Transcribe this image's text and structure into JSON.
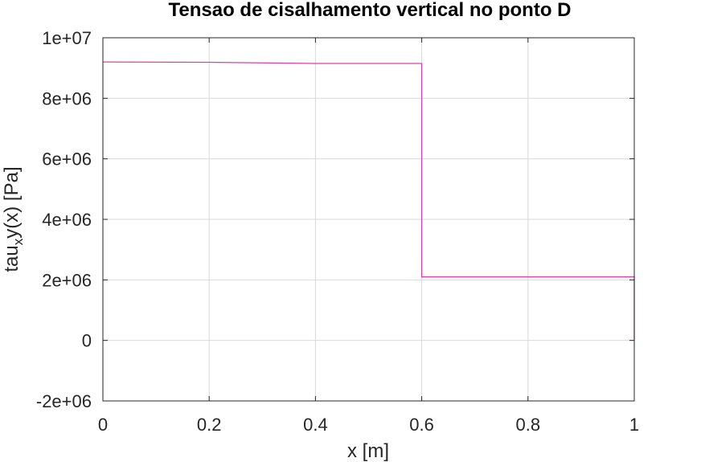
{
  "chart_data": {
    "type": "line",
    "title": "Tensao de cisalhamento vertical no ponto D",
    "xlabel": "x [m]",
    "ylabel": {
      "prefix": "tau",
      "subscript": "x",
      "suffix": "y(x) [Pa]"
    },
    "xlim": [
      0,
      1
    ],
    "ylim": [
      -2000000,
      10000000
    ],
    "xticks": [
      0,
      0.2,
      0.4,
      0.6,
      0.8,
      1
    ],
    "xtick_labels": [
      "0",
      "0.2",
      "0.4",
      "0.6",
      "0.8",
      "1"
    ],
    "yticks": [
      -2000000,
      0,
      2000000,
      4000000,
      6000000,
      8000000,
      10000000
    ],
    "ytick_labels": [
      "-2e+06",
      "0",
      "2e+06",
      "4e+06",
      "6e+06",
      "8e+06",
      "1e+07"
    ],
    "grid": true,
    "series": [
      {
        "color": "#e040a0",
        "x": [
          0,
          0.2,
          0.4,
          0.6,
          0.6,
          0.8,
          1.0,
          1.0
        ],
        "y": [
          9200000,
          9190000,
          9150000,
          9150000,
          2100000,
          2100000,
          2100000,
          0
        ]
      }
    ]
  }
}
